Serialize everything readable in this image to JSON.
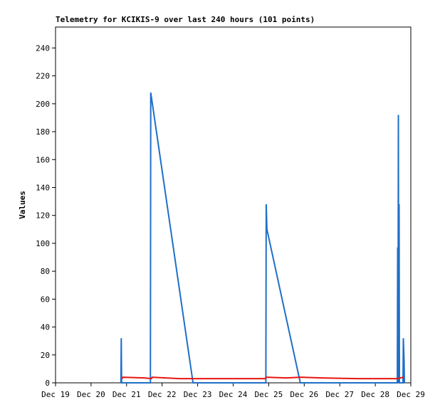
{
  "chart_data": {
    "type": "line",
    "title": "Telemetry for KCIKIS-9 over last 240 hours (101 points)",
    "y_label": "Values",
    "xlim": [
      0,
      10
    ],
    "xticks": [
      {
        "value": 0,
        "label": "Dec 19"
      },
      {
        "value": 1,
        "label": "Dec 20"
      },
      {
        "value": 2,
        "label": "Dec 21"
      },
      {
        "value": 3,
        "label": "Dec 22"
      },
      {
        "value": 4,
        "label": "Dec 23"
      },
      {
        "value": 5,
        "label": "Dec 24"
      },
      {
        "value": 6,
        "label": "Dec 25"
      },
      {
        "value": 7,
        "label": "Dec 26"
      },
      {
        "value": 8,
        "label": "Dec 27"
      },
      {
        "value": 9,
        "label": "Dec 28"
      },
      {
        "value": 10,
        "label": "Dec 29"
      }
    ],
    "ylim": [
      0,
      255
    ],
    "yticks": [
      0,
      20,
      40,
      60,
      80,
      100,
      120,
      140,
      160,
      180,
      200,
      220,
      240
    ],
    "series": [
      {
        "color": "#1f6fc8",
        "x": [
          1.84,
          1.85,
          1.86,
          2.67,
          2.68,
          3.87,
          5.92,
          5.93,
          5.95,
          6.89,
          9.62,
          9.63,
          9.64,
          9.65,
          9.66,
          9.67,
          9.68,
          9.78,
          9.79,
          9.81,
          9.82
        ],
        "values": [
          0,
          32,
          0,
          0,
          208,
          0,
          0,
          128,
          110,
          0,
          0,
          97,
          0,
          192,
          0,
          128,
          0,
          0,
          32,
          16,
          0
        ]
      },
      {
        "color": "#e8150f",
        "x": [
          1.86,
          1.9,
          2.5,
          2.7,
          2.72,
          3.5,
          4,
          5,
          5.9,
          5.93,
          6.5,
          6.9,
          7.5,
          8.5,
          9.6,
          9.8
        ],
        "values": [
          3,
          4,
          3.5,
          3,
          4,
          3,
          3,
          3,
          3,
          4,
          3.5,
          4,
          3.5,
          3,
          3,
          4
        ]
      }
    ]
  }
}
